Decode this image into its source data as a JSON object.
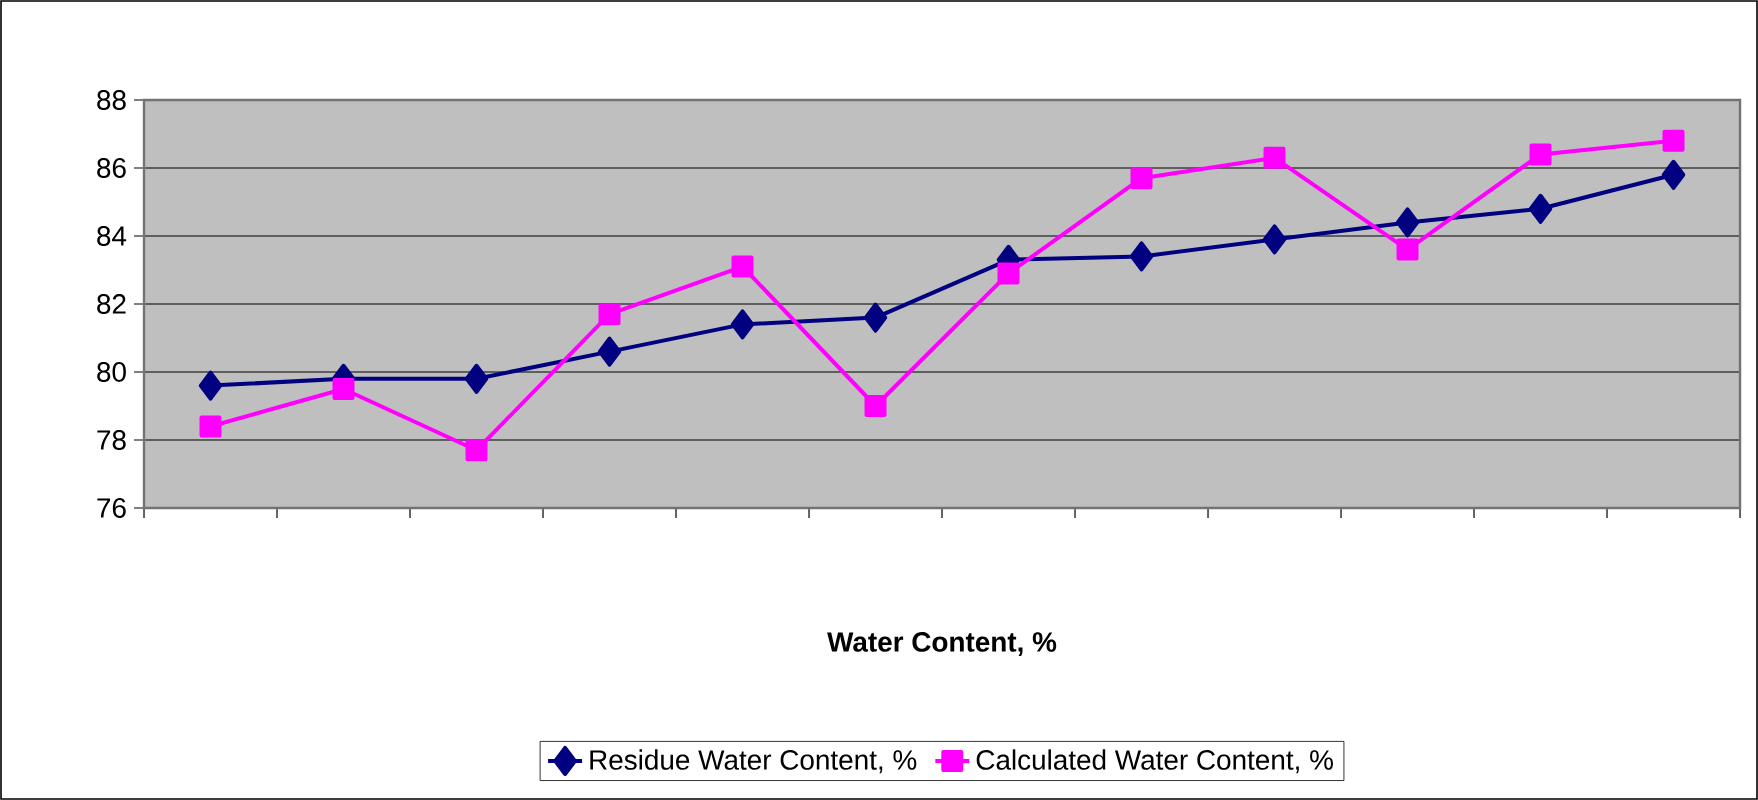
{
  "chart_data": {
    "type": "line",
    "xlabel": "Water Content, %",
    "categories": [
      null,
      null,
      null,
      null,
      null,
      null,
      null,
      null,
      null,
      null,
      null,
      null
    ],
    "series": [
      {
        "name": "Residue Water Content, %",
        "color": "#000080",
        "marker": "diamond",
        "values": [
          79.6,
          79.8,
          79.8,
          80.6,
          81.4,
          81.6,
          83.3,
          83.4,
          83.9,
          84.4,
          84.8,
          85.8
        ]
      },
      {
        "name": "Calculated Water Content, %",
        "color": "#ff00ff",
        "marker": "square",
        "values": [
          78.4,
          79.5,
          77.7,
          81.7,
          83.1,
          79.0,
          82.9,
          85.7,
          86.3,
          83.6,
          86.4,
          86.8
        ]
      }
    ],
    "ylim": [
      76,
      88
    ],
    "yticks": [
      76,
      78,
      80,
      82,
      84,
      86,
      88
    ],
    "grid": "y",
    "legend": "bottom",
    "line_style": "solid"
  }
}
